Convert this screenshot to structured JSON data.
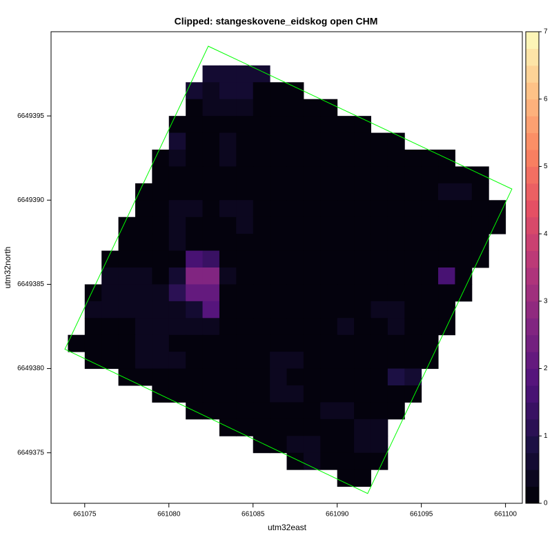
{
  "chart_data": {
    "type": "raster",
    "title": "Clipped: stangeskovene_eidskog open CHM",
    "xlabel": "utm32east",
    "ylabel": "utm32north",
    "xlim": [
      661073,
      661101
    ],
    "ylim": [
      6649372,
      6649400
    ],
    "xticks": [
      661075,
      661080,
      661085,
      661090,
      661095,
      661100
    ],
    "yticks": [
      6649375,
      6649380,
      6649385,
      6649390,
      6649395
    ],
    "zlim": [
      0,
      7
    ],
    "zticks": [
      0,
      1,
      2,
      3,
      4,
      5,
      6,
      7
    ],
    "palette": [
      "#000004",
      "#1c1044",
      "#4f127b",
      "#812581",
      "#b5367a",
      "#e55064",
      "#fb8761",
      "#fec287",
      "#fcfdbf"
    ],
    "xbins": [
      661074,
      661075,
      661076,
      661077,
      661078,
      661079,
      661080,
      661081,
      661082,
      661083,
      661084,
      661085,
      661086,
      661087,
      661088,
      661089,
      661090,
      661091,
      661092,
      661093,
      661094,
      661095,
      661096,
      661097,
      661098,
      661099,
      661100
    ],
    "ybins": [
      6649398,
      6649397,
      6649396,
      6649395,
      6649394,
      6649393,
      6649392,
      6649391,
      6649390,
      6649389,
      6649388,
      6649387,
      6649386,
      6649385,
      6649384,
      6649383,
      6649382,
      6649381,
      6649380,
      6649379,
      6649378,
      6649377,
      6649376,
      6649375,
      6649374,
      6649373
    ],
    "z": [
      [
        null,
        null,
        null,
        null,
        null,
        null,
        null,
        null,
        0.6,
        0.6,
        0.7,
        0.5,
        null,
        null,
        null,
        null,
        null,
        null,
        null,
        null,
        null,
        null,
        null,
        null,
        null,
        null
      ],
      [
        null,
        null,
        null,
        null,
        null,
        null,
        null,
        0.5,
        0.4,
        0.6,
        0.5,
        0.1,
        0.1,
        0.1,
        null,
        null,
        null,
        null,
        null,
        null,
        null,
        null,
        null,
        null,
        null,
        null
      ],
      [
        null,
        null,
        null,
        null,
        null,
        null,
        null,
        0.1,
        0.3,
        0.4,
        0.4,
        0.1,
        0.1,
        0.1,
        0.1,
        0.1,
        null,
        null,
        null,
        null,
        null,
        null,
        null,
        null,
        null,
        null
      ],
      [
        null,
        null,
        null,
        null,
        null,
        null,
        0.2,
        0.1,
        0.1,
        0.1,
        0.1,
        0.1,
        0.1,
        0.1,
        0.1,
        0.1,
        0.1,
        0.1,
        null,
        null,
        null,
        null,
        null,
        null,
        null,
        null
      ],
      [
        null,
        null,
        null,
        null,
        null,
        null,
        0.5,
        0.1,
        0.1,
        0.3,
        0.1,
        0.1,
        0.1,
        0.1,
        0.1,
        0.1,
        0.1,
        0.1,
        0.1,
        0.1,
        null,
        null,
        null,
        null,
        null,
        null
      ],
      [
        null,
        null,
        null,
        null,
        null,
        0.2,
        0.3,
        0.1,
        0.1,
        0.3,
        0.1,
        0.1,
        0.1,
        0.1,
        0.1,
        0.1,
        0.1,
        0.1,
        0.1,
        0.1,
        0.1,
        0.1,
        0.1,
        null,
        null,
        null
      ],
      [
        null,
        null,
        null,
        null,
        null,
        0.1,
        0.1,
        0.1,
        0.1,
        0.1,
        0.1,
        0.1,
        0.1,
        0.1,
        0.1,
        0.1,
        0.1,
        0.1,
        0.1,
        0.1,
        0.1,
        0.1,
        0.2,
        0.2,
        0.1,
        null
      ],
      [
        null,
        null,
        null,
        null,
        0.2,
        0.1,
        0.1,
        0.1,
        0.1,
        0.1,
        0.1,
        0.1,
        0.1,
        0.1,
        0.1,
        0.1,
        0.1,
        0.1,
        0.1,
        0.1,
        0.1,
        0.1,
        0.3,
        0.4,
        0.2,
        null
      ],
      [
        null,
        null,
        null,
        null,
        0.2,
        0.1,
        0.3,
        0.3,
        0.1,
        0.3,
        0.3,
        0.1,
        0.1,
        0.1,
        0.1,
        0.1,
        0.1,
        0.1,
        0.1,
        0.1,
        0.1,
        0.1,
        0.1,
        0.1,
        0.1,
        0.1
      ],
      [
        null,
        null,
        null,
        0.2,
        0.2,
        0.1,
        0.4,
        0.2,
        0.1,
        0.1,
        0.3,
        0.1,
        0.1,
        0.1,
        0.1,
        0.1,
        0.1,
        0.1,
        0.1,
        0.1,
        0.1,
        0.1,
        0.1,
        0.1,
        0.1,
        0.1
      ],
      [
        null,
        null,
        null,
        0.2,
        0.2,
        0.1,
        0.3,
        0.2,
        0.1,
        0.1,
        0.1,
        0.1,
        0.1,
        0.1,
        0.1,
        0.1,
        0.1,
        0.1,
        0.1,
        0.1,
        0.1,
        0.1,
        0.1,
        0.1,
        0.1,
        null
      ],
      [
        null,
        null,
        0.1,
        0.1,
        0.2,
        0.1,
        0.2,
        1.5,
        1.4,
        0.1,
        0.1,
        0.1,
        0.1,
        0.1,
        0.1,
        0.1,
        0.1,
        0.1,
        0.1,
        0.1,
        0.1,
        0.2,
        0.1,
        0.1,
        0.1,
        null
      ],
      [
        null,
        null,
        0.3,
        0.3,
        0.3,
        0.1,
        0.5,
        2.5,
        2.6,
        0.3,
        0.1,
        0.1,
        0.1,
        0.1,
        0.1,
        0.1,
        0.1,
        0.1,
        0.1,
        0.1,
        0.1,
        0.2,
        1.5,
        0.1,
        null,
        null
      ],
      [
        null,
        0.1,
        0.4,
        0.4,
        0.3,
        0.3,
        1.0,
        2.0,
        2.2,
        0.1,
        0.1,
        0.1,
        0.1,
        0.1,
        0.1,
        0.1,
        0.1,
        0.1,
        0.1,
        0.1,
        0.1,
        0.2,
        0.2,
        0.1,
        null,
        null
      ],
      [
        null,
        0.3,
        0.4,
        0.4,
        0.3,
        0.3,
        0.4,
        0.6,
        1.8,
        0.1,
        0.1,
        0.1,
        0.1,
        0.1,
        0.1,
        0.1,
        0.1,
        0.1,
        0.3,
        0.4,
        0.1,
        0.1,
        0.1,
        null,
        null,
        null
      ],
      [
        null,
        0.1,
        0.1,
        0.1,
        0.3,
        0.4,
        0.4,
        0.3,
        0.4,
        0.1,
        0.1,
        0.1,
        0.1,
        0.1,
        0.1,
        0.1,
        0.3,
        0.1,
        0.2,
        0.3,
        0.1,
        0.1,
        0.1,
        null,
        null,
        null
      ],
      [
        0.1,
        0.2,
        0.1,
        0.1,
        0.3,
        0.3,
        0.1,
        0.1,
        0.1,
        0.1,
        0.1,
        0.1,
        0.1,
        0.1,
        0.1,
        0.1,
        0.1,
        0.1,
        0.1,
        0.1,
        0.1,
        0.1,
        null,
        null,
        null,
        null
      ],
      [
        null,
        0.1,
        0.1,
        0.1,
        0.3,
        0.3,
        0.3,
        0.1,
        0.1,
        0.1,
        0.1,
        0.1,
        0.4,
        0.3,
        0.1,
        0.1,
        0.1,
        0.1,
        0.1,
        0.1,
        0.1,
        0.1,
        null,
        null,
        null,
        null
      ],
      [
        null,
        null,
        null,
        0.1,
        0.1,
        0.1,
        0.1,
        0.1,
        0.1,
        0.1,
        0.1,
        0.1,
        0.3,
        0.1,
        0.1,
        0.1,
        0.1,
        0.1,
        0.1,
        0.8,
        0.5,
        null,
        null,
        null,
        null,
        null
      ],
      [
        null,
        null,
        null,
        null,
        null,
        0.1,
        0.1,
        0.1,
        0.1,
        0.1,
        0.1,
        0.1,
        0.3,
        0.3,
        0.1,
        0.1,
        0.1,
        0.1,
        0.1,
        0.2,
        0.1,
        null,
        null,
        null,
        null,
        null
      ],
      [
        null,
        null,
        null,
        null,
        null,
        null,
        null,
        0.1,
        0.1,
        0.1,
        0.1,
        0.1,
        0.1,
        0.2,
        0.1,
        0.3,
        0.3,
        0.1,
        0.2,
        0.2,
        null,
        null,
        null,
        null,
        null,
        null
      ],
      [
        null,
        null,
        null,
        null,
        null,
        null,
        null,
        null,
        null,
        0.1,
        0.1,
        0.1,
        0.1,
        0.1,
        0.1,
        0.1,
        0.1,
        0.3,
        0.3,
        null,
        null,
        null,
        null,
        null,
        null,
        null
      ],
      [
        null,
        null,
        null,
        null,
        null,
        null,
        null,
        null,
        null,
        null,
        null,
        0.1,
        0.1,
        0.3,
        0.3,
        0.1,
        0.1,
        0.4,
        0.3,
        null,
        null,
        null,
        null,
        null,
        null,
        null
      ],
      [
        null,
        null,
        null,
        null,
        null,
        null,
        null,
        null,
        null,
        null,
        null,
        null,
        null,
        0.2,
        0.3,
        0.2,
        0.1,
        0.2,
        0.2,
        null,
        null,
        null,
        null,
        null,
        null,
        null
      ],
      [
        null,
        null,
        null,
        null,
        null,
        null,
        null,
        null,
        null,
        null,
        null,
        null,
        null,
        null,
        null,
        null,
        0.2,
        0.2,
        null,
        null,
        null,
        null,
        null,
        null,
        null,
        null
      ]
    ],
    "outline": {
      "color": "#00ff00",
      "x": [
        661082.34,
        661100.38,
        661091.81,
        661073.82
      ],
      "y": [
        6649399.14,
        6649390.66,
        6649372.58,
        6649381.15
      ]
    }
  }
}
